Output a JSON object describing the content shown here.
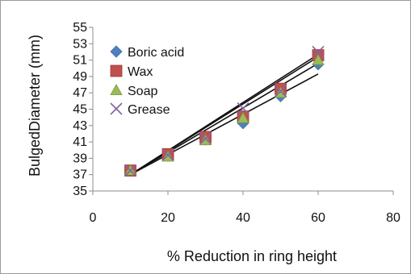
{
  "chart_data": {
    "type": "scatter",
    "title": "",
    "xlabel": "% Reduction in ring height",
    "ylabel": "BulgedDiameter (mm)",
    "xlim": [
      0,
      80
    ],
    "ylim": [
      35,
      55
    ],
    "x_ticks": [
      "0",
      "20",
      "40",
      "60",
      "80"
    ],
    "y_ticks": [
      "35",
      "37",
      "39",
      "41",
      "43",
      "45",
      "47",
      "49",
      "51",
      "53",
      "55"
    ],
    "grid": false,
    "legend_position": "top-left",
    "series": [
      {
        "name": "Boric acid",
        "marker": "diamond",
        "color": "#4f81bd",
        "x": [
          10,
          20,
          30,
          40,
          50,
          60
        ],
        "y": [
          37.5,
          39.3,
          41.3,
          43.3,
          46.6,
          50.5
        ],
        "trend": [
          [
            10,
            37.0
          ],
          [
            60,
            49.3
          ]
        ]
      },
      {
        "name": "Wax",
        "marker": "square",
        "color": "#c0504d",
        "x": [
          10,
          20,
          30,
          40,
          50,
          60
        ],
        "y": [
          37.5,
          39.5,
          41.6,
          44.1,
          47.5,
          51.6
        ],
        "trend": [
          [
            10,
            37.0
          ],
          [
            60,
            51.4
          ]
        ]
      },
      {
        "name": "Soap",
        "marker": "triangle",
        "color": "#9bbb59",
        "x": [
          10,
          20,
          30,
          40,
          50,
          60
        ],
        "y": [
          37.5,
          39.2,
          41.2,
          43.9,
          47.0,
          51.0
        ],
        "trend": [
          [
            10,
            37.0
          ],
          [
            60,
            50.6
          ]
        ]
      },
      {
        "name": "Grease",
        "marker": "x",
        "color": "#8064a2",
        "x": [
          10,
          20,
          30,
          40,
          50,
          60
        ],
        "y": [
          37.5,
          39.4,
          41.4,
          45.1,
          47.2,
          52.0
        ],
        "trend": [
          [
            10,
            37.0
          ],
          [
            60,
            51.7
          ]
        ]
      }
    ]
  }
}
